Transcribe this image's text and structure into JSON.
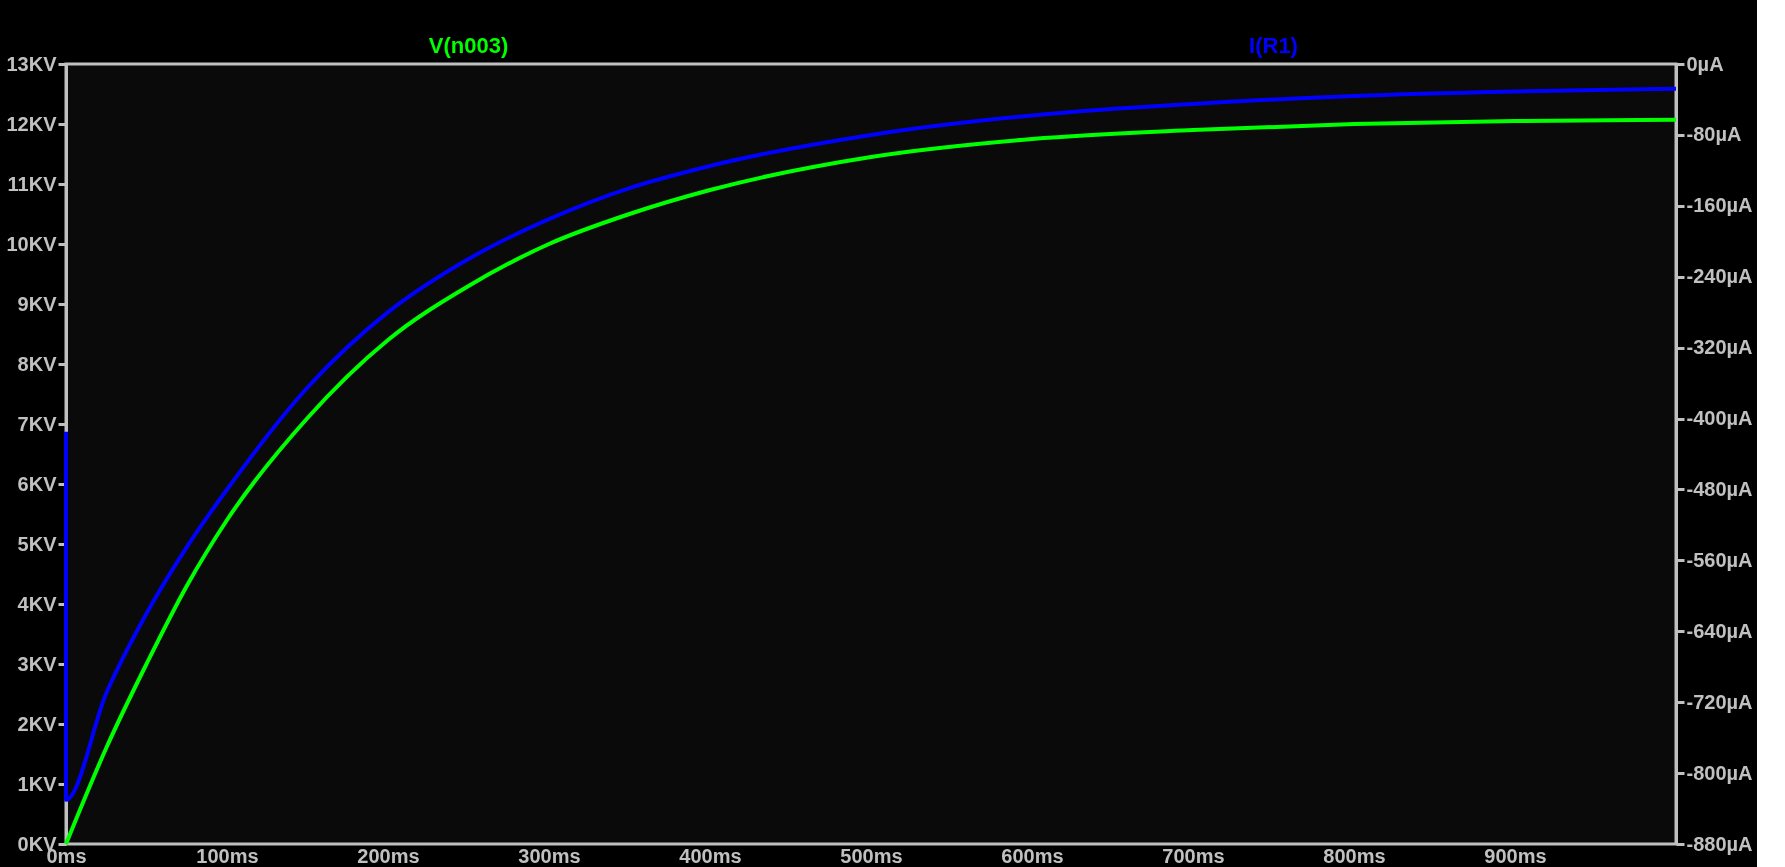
{
  "chart_data": {
    "type": "line",
    "xlim": [
      0,
      1000
    ],
    "xticks": [
      {
        "value": 0,
        "label": "0ms"
      },
      {
        "value": 100,
        "label": "100ms"
      },
      {
        "value": 200,
        "label": "200ms"
      },
      {
        "value": 300,
        "label": "300ms"
      },
      {
        "value": 400,
        "label": "400ms"
      },
      {
        "value": 500,
        "label": "500ms"
      },
      {
        "value": 600,
        "label": "600ms"
      },
      {
        "value": 700,
        "label": "700ms"
      },
      {
        "value": 800,
        "label": "800ms"
      },
      {
        "value": 900,
        "label": "900ms"
      }
    ],
    "ylim": [
      0,
      13
    ],
    "yticks": [
      {
        "value": 0,
        "label": "0KV"
      },
      {
        "value": 1,
        "label": "1KV"
      },
      {
        "value": 2,
        "label": "2KV"
      },
      {
        "value": 3,
        "label": "3KV"
      },
      {
        "value": 4,
        "label": "4KV"
      },
      {
        "value": 5,
        "label": "5KV"
      },
      {
        "value": 6,
        "label": "6KV"
      },
      {
        "value": 7,
        "label": "7KV"
      },
      {
        "value": 8,
        "label": "8KV"
      },
      {
        "value": 9,
        "label": "9KV"
      },
      {
        "value": 10,
        "label": "10KV"
      },
      {
        "value": 11,
        "label": "11KV"
      },
      {
        "value": 12,
        "label": "12KV"
      },
      {
        "value": 13,
        "label": "13KV"
      }
    ],
    "y2lim": [
      -880,
      0
    ],
    "y2ticks": [
      {
        "value": 0,
        "label": "0µA"
      },
      {
        "value": -80,
        "label": "-80µA"
      },
      {
        "value": -160,
        "label": "-160µA"
      },
      {
        "value": -240,
        "label": "-240µA"
      },
      {
        "value": -320,
        "label": "-320µA"
      },
      {
        "value": -400,
        "label": "-400µA"
      },
      {
        "value": -480,
        "label": "-480µA"
      },
      {
        "value": -560,
        "label": "-560µA"
      },
      {
        "value": -640,
        "label": "-640µA"
      },
      {
        "value": -720,
        "label": "-720µA"
      },
      {
        "value": -800,
        "label": "-800µA"
      },
      {
        "value": -880,
        "label": "-880µA"
      }
    ],
    "grid": false,
    "legend": "top",
    "marker": "none",
    "line_style": "solid",
    "series": [
      {
        "name": "V(n003)",
        "color": "#00ff00",
        "axis": "y",
        "x": [
          0,
          25,
          50,
          75,
          100,
          150,
          200,
          250,
          300,
          350,
          400,
          500,
          600,
          700,
          800,
          900,
          1000
        ],
        "values": [
          0,
          1.6,
          3.0,
          4.3,
          5.4,
          7.1,
          8.4,
          9.3,
          10.0,
          10.5,
          10.9,
          11.45,
          11.75,
          11.9,
          12.0,
          12.05,
          12.07
        ]
      },
      {
        "name": "I(R1)",
        "color": "#0000ff",
        "axis": "y2",
        "x": [
          0,
          0,
          25,
          50,
          75,
          100,
          150,
          200,
          250,
          300,
          350,
          400,
          500,
          600,
          700,
          800,
          900,
          1000
        ],
        "values": [
          -415,
          -830,
          -710,
          -620,
          -545,
          -480,
          -365,
          -280,
          -220,
          -175,
          -140,
          -115,
          -80,
          -58,
          -45,
          -36,
          -31,
          -28
        ]
      }
    ]
  }
}
